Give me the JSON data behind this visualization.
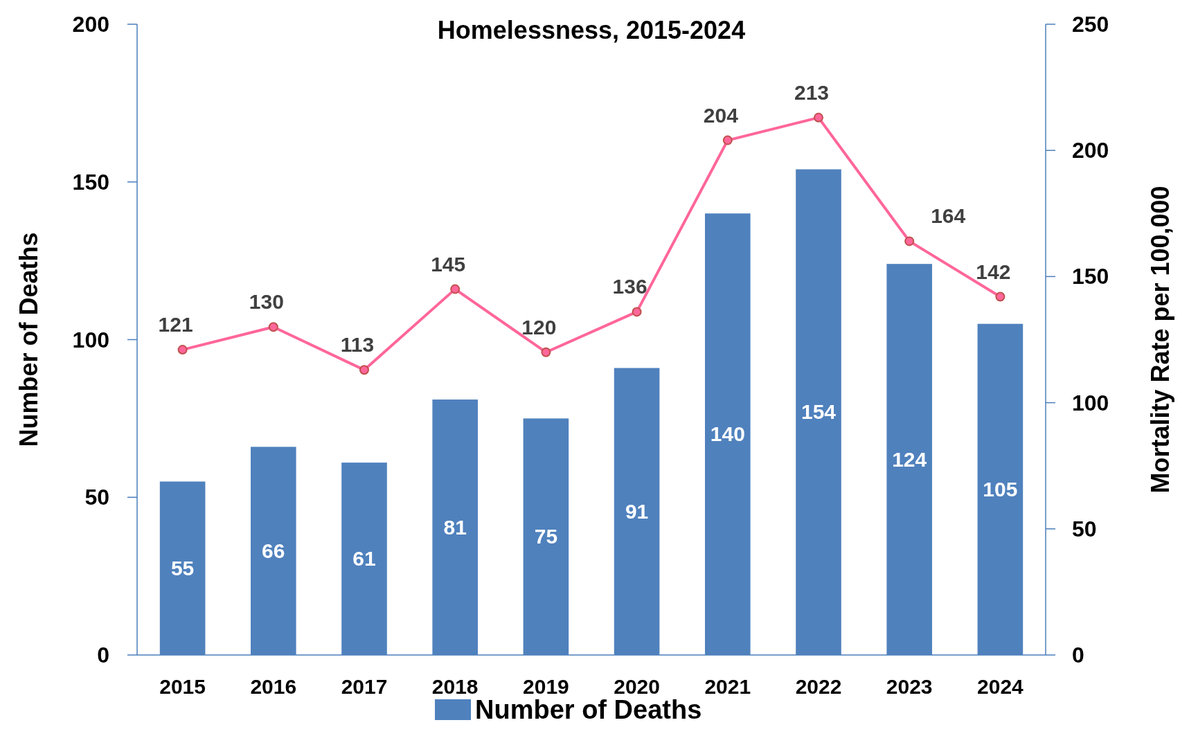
{
  "chart_data": {
    "type": "bar",
    "title": "Homelessness, 2015-2024",
    "ylabel": "Number of Deaths",
    "y2label": "Mortality Rate per 100,000",
    "categories": [
      "2015",
      "2016",
      "2017",
      "2018",
      "2019",
      "2020",
      "2021",
      "2022",
      "2023",
      "2024"
    ],
    "series": [
      {
        "name": "Number of Deaths",
        "color": "#4f81bd",
        "values": [
          55,
          66,
          61,
          81,
          75,
          91,
          140,
          154,
          124,
          105
        ]
      },
      {
        "type": "line",
        "axis": "y2",
        "color": "#ff6699",
        "values": [
          121,
          130,
          113,
          145,
          120,
          136,
          204,
          213,
          164,
          142
        ]
      }
    ],
    "ylim": [
      0,
      200
    ],
    "yticks": [
      0,
      50,
      100,
      150,
      200
    ],
    "y2lim": [
      0,
      250
    ],
    "y2ticks": [
      0,
      50,
      100,
      150,
      200,
      250
    ],
    "data_labels": true,
    "legend": "bottom",
    "grid": false,
    "marker": "circle",
    "line_style": "solid"
  }
}
